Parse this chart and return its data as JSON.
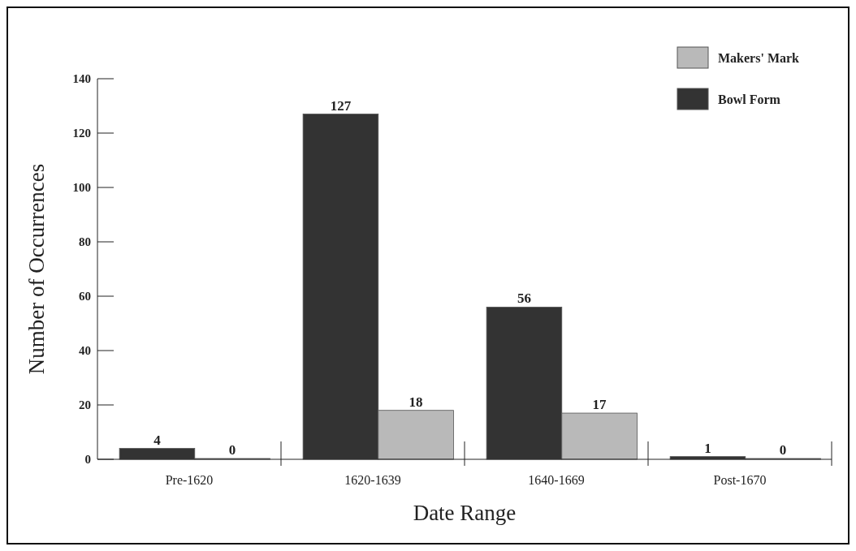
{
  "chart_data": {
    "type": "bar",
    "xlabel": "Date Range",
    "ylabel": "Number of Occurrences",
    "categories": [
      "Pre-1620",
      "1620-1639",
      "1640-1669",
      "Post-1670"
    ],
    "series": [
      {
        "name": "Bowl Form",
        "color": "#333333",
        "values": [
          4,
          127,
          56,
          1
        ]
      },
      {
        "name": "Makers' Mark",
        "color": "#b9b9b9",
        "values": [
          0,
          18,
          17,
          0
        ]
      }
    ],
    "ylim": [
      0,
      140
    ],
    "yticks": [
      0,
      20,
      40,
      60,
      80,
      100,
      120,
      140
    ],
    "data_labels": true,
    "legend": "top right",
    "grid": false
  }
}
